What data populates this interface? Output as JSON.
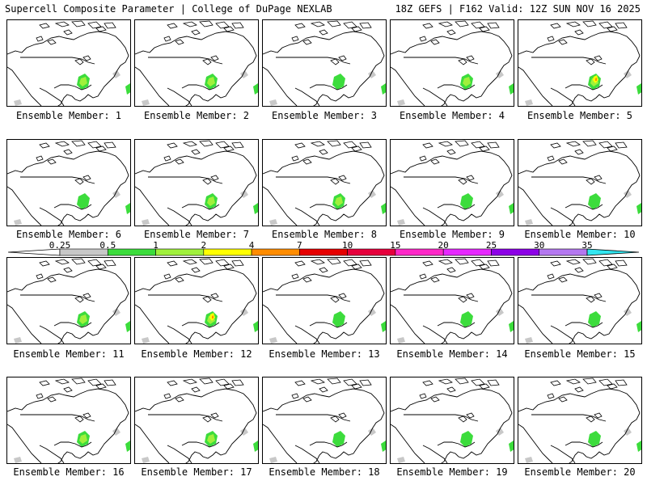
{
  "header": {
    "title": "Supercell Composite Parameter | College of DuPage NEXLAB",
    "run_info": "18Z GEFS | F162 Valid: 12Z SUN NOV 16 2025"
  },
  "panels": [
    {
      "label": "Ensemble Member: 1",
      "intensity": 1
    },
    {
      "label": "Ensemble Member: 2",
      "intensity": 1
    },
    {
      "label": "Ensemble Member: 3",
      "intensity": 0
    },
    {
      "label": "Ensemble Member: 4",
      "intensity": 1
    },
    {
      "label": "Ensemble Member: 5",
      "intensity": 2
    },
    {
      "label": "Ensemble Member: 6",
      "intensity": 0
    },
    {
      "label": "Ensemble Member: 7",
      "intensity": 1
    },
    {
      "label": "Ensemble Member: 8",
      "intensity": 1
    },
    {
      "label": "Ensemble Member: 9",
      "intensity": 0
    },
    {
      "label": "Ensemble Member: 10",
      "intensity": 0
    },
    {
      "label": "Ensemble Member: 11",
      "intensity": 1
    },
    {
      "label": "Ensemble Member: 12",
      "intensity": 2
    },
    {
      "label": "Ensemble Member: 13",
      "intensity": 0
    },
    {
      "label": "Ensemble Member: 14",
      "intensity": 0
    },
    {
      "label": "Ensemble Member: 15",
      "intensity": 0
    },
    {
      "label": "Ensemble Member: 16",
      "intensity": 1
    },
    {
      "label": "Ensemble Member: 17",
      "intensity": 1
    },
    {
      "label": "Ensemble Member: 18",
      "intensity": 0
    },
    {
      "label": "Ensemble Member: 19",
      "intensity": 0
    },
    {
      "label": "Ensemble Member: 20",
      "intensity": 0
    }
  ],
  "legend": {
    "ticks": [
      "0.25",
      "0.5",
      "1",
      "2",
      "4",
      "7",
      "10",
      "15",
      "20",
      "25",
      "30",
      "35"
    ],
    "colors": [
      "#c8c8c8",
      "#3cdc3c",
      "#a0f03c",
      "#ffff00",
      "#ff8c00",
      "#e60000",
      "#e6003c",
      "#ff28c8",
      "#e628ff",
      "#8c00e6",
      "#b478f0",
      "#32e6f0"
    ]
  },
  "palette": {
    "land_line": "#000000",
    "trace": "#c8c8c8",
    "low": "#3cdc3c",
    "mid": "#a0f03c",
    "high": "#ffff00",
    "very_high": "#ff8c00"
  }
}
